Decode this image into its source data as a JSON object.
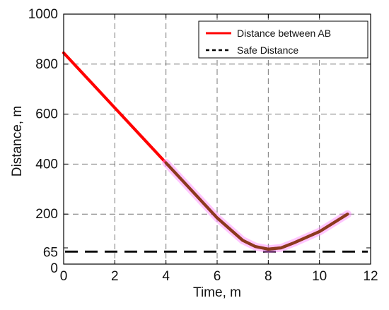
{
  "chart_data": {
    "type": "line",
    "xlabel": "Time, m",
    "ylabel": "Distance, m",
    "xlim": [
      0,
      12
    ],
    "ylim": [
      0,
      1000
    ],
    "x_ticks": [
      0,
      2,
      4,
      6,
      8,
      10,
      12
    ],
    "y_ticks": [
      0,
      65,
      200,
      400,
      600,
      800,
      1000
    ],
    "grid": true,
    "legend_position": "top-right",
    "series": [
      {
        "name": "Distance between AB",
        "color": "#ff0000",
        "style": "solid",
        "x": [
          0,
          1,
          2,
          3,
          4,
          5,
          6,
          7,
          7.5,
          8,
          8.5,
          9,
          10,
          11.1
        ],
        "y": [
          845,
          735,
          625,
          515,
          405,
          295,
          185,
          95,
          70,
          60,
          65,
          85,
          130,
          200
        ]
      },
      {
        "name": "Safe Distance",
        "color": "#000000",
        "style": "dashed",
        "x": [
          0,
          12
        ],
        "y": [
          50,
          50
        ]
      }
    ],
    "highlight": {
      "color_line": "#8b3a1e",
      "color_glow": "#ff80ff",
      "x_start": 4
    }
  }
}
